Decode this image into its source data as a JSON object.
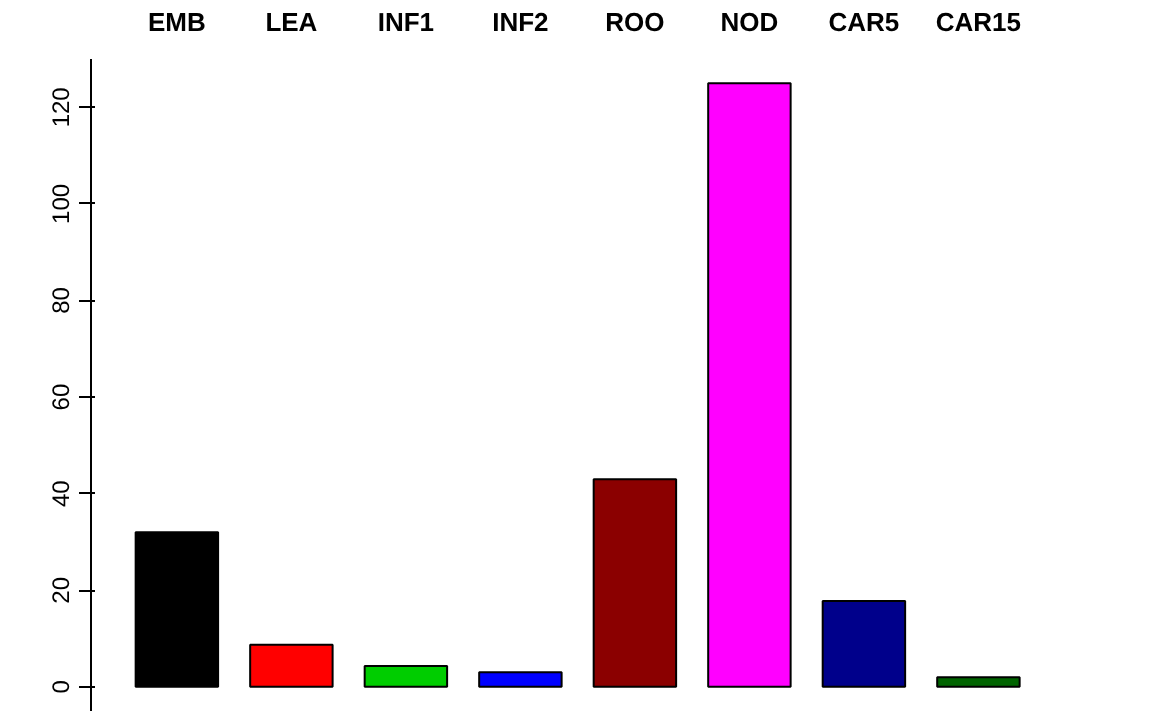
{
  "chart_data": {
    "type": "bar",
    "categories": [
      "EMB",
      "LEA",
      "INF1",
      "INF2",
      "ROO",
      "NOD",
      "CAR5",
      "CAR15"
    ],
    "values": [
      32,
      8.7,
      4.3,
      3,
      43,
      125,
      17.8,
      2
    ],
    "colors": [
      "#000000",
      "#ff0000",
      "#00cd00",
      "#0000ff",
      "#8b0000",
      "#ff00ff",
      "#00008b",
      "#006400"
    ],
    "ylim": [
      -5,
      130
    ],
    "yticks": [
      0,
      20,
      40,
      60,
      80,
      100,
      120
    ],
    "grid": false
  }
}
